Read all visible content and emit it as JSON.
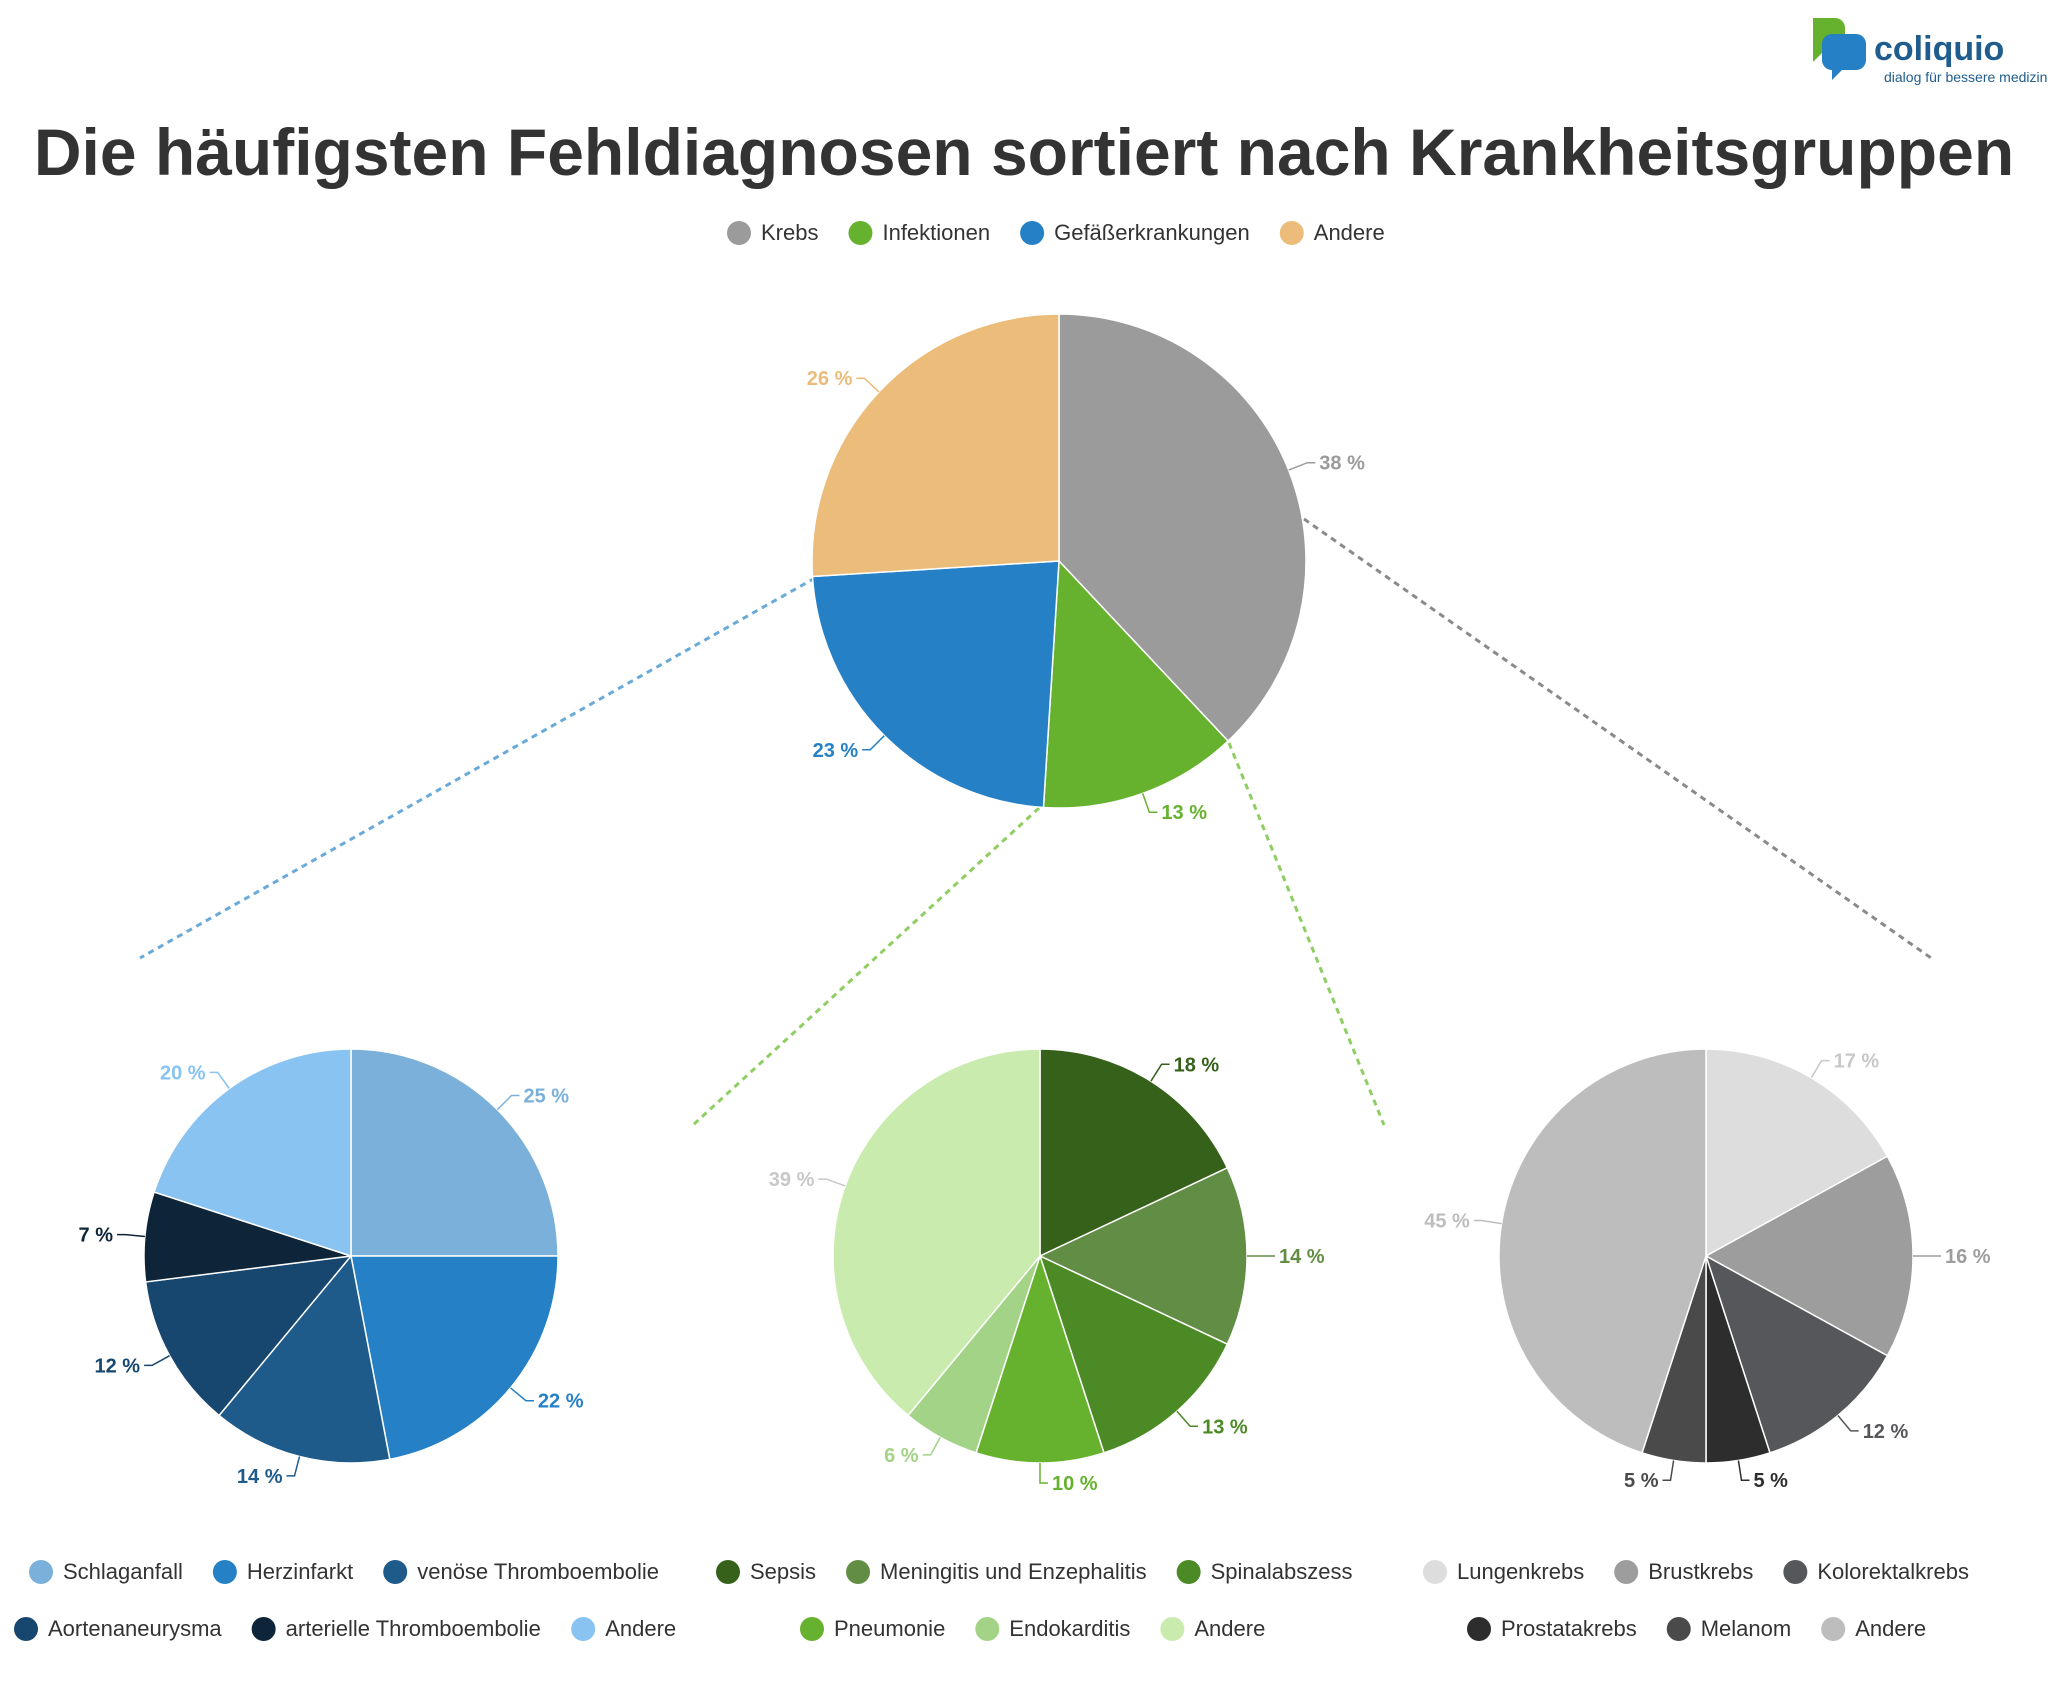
{
  "brand": {
    "name": "coliquio",
    "tagline": "dialog für bessere medizin"
  },
  "chart_data": [
    {
      "type": "pie",
      "title": "Die häufigsten Fehldiagnosen sortiert nach Krankheitsgruppen",
      "legend_position": "top",
      "slices": [
        {
          "label": "Krebs",
          "value": 38,
          "color": "#9b9b9b",
          "value_label": "38 %"
        },
        {
          "label": "Infektionen",
          "value": 13,
          "color": "#66b22f",
          "value_label": "13 %"
        },
        {
          "label": "Gefäßerkrankungen",
          "value": 23,
          "color": "#2580c6",
          "value_label": "23 %"
        },
        {
          "label": "Andere",
          "value": 26,
          "color": "#ebbc7a",
          "value_label": "26 %"
        }
      ]
    },
    {
      "type": "pie",
      "title": "Gefäßerkrankungen",
      "legend_position": "bottom",
      "slices": [
        {
          "label": "Schlaganfall",
          "value": 25,
          "color": "#7ab0d9",
          "value_label": "25 %"
        },
        {
          "label": "Herzinfarkt",
          "value": 22,
          "color": "#2580c6",
          "value_label": "22 %"
        },
        {
          "label": "venöse Thromboembolie",
          "value": 14,
          "color": "#1e5a8a",
          "value_label": "14 %"
        },
        {
          "label": "Aortenaneurysma",
          "value": 12,
          "color": "#17466e",
          "value_label": "12 %"
        },
        {
          "label": "arterielle Thromboembolie",
          "value": 7,
          "color": "#0e2539",
          "value_label": "7 %"
        },
        {
          "label": "Andere",
          "value": 20,
          "color": "#88c3f1",
          "value_label": "20 %"
        }
      ]
    },
    {
      "type": "pie",
      "title": "Infektionen",
      "legend_position": "bottom",
      "slices": [
        {
          "label": "Sepsis",
          "value": 18,
          "color": "#36611b",
          "value_label": "18 %"
        },
        {
          "label": "Meningitis und Enzephalitis",
          "value": 14,
          "color": "#628d44",
          "value_label": "14 %"
        },
        {
          "label": "Spinalabszess",
          "value": 13,
          "color": "#4b8a25",
          "value_label": "13 %"
        },
        {
          "label": "Pneumonie",
          "value": 10,
          "color": "#66b22f",
          "value_label": "10 %"
        },
        {
          "label": "Endokarditis",
          "value": 6,
          "color": "#a2d386",
          "value_label": "6 %"
        },
        {
          "label": "Andere",
          "value": 39,
          "color": "#c9ecae",
          "value_label": "39 %"
        }
      ]
    },
    {
      "type": "pie",
      "title": "Krebs",
      "legend_position": "bottom",
      "slices": [
        {
          "label": "Lungenkrebs",
          "value": 17,
          "color": "#dddddd",
          "value_label": "17 %"
        },
        {
          "label": "Brustkrebs",
          "value": 16,
          "color": "#9d9d9d",
          "value_label": "16 %"
        },
        {
          "label": "Kolorektalkrebs",
          "value": 12,
          "color": "#56575b",
          "value_label": "12 %"
        },
        {
          "label": "Prostatakrebs",
          "value": 5,
          "color": "#2d2d2d",
          "value_label": "5 %"
        },
        {
          "label": "Melanom",
          "value": 5,
          "color": "#4a4a4a",
          "value_label": "5 %"
        },
        {
          "label": "Andere",
          "value": 45,
          "color": "#bdbdbd",
          "value_label": "45 %"
        }
      ]
    }
  ]
}
